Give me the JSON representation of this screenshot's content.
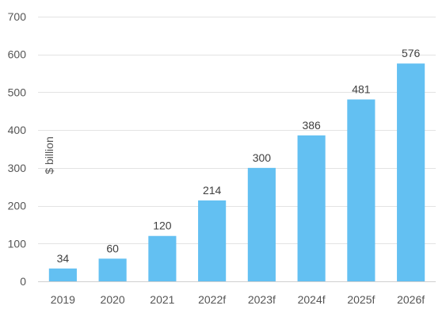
{
  "chart_data": {
    "type": "bar",
    "categories": [
      "2019",
      "2020",
      "2021",
      "2022f",
      "2023f",
      "2024f",
      "2025f",
      "2026f"
    ],
    "values": [
      34,
      60,
      120,
      214,
      300,
      386,
      481,
      576
    ],
    "data_labels": [
      "34",
      "60",
      "120",
      "214",
      "300",
      "386",
      "481",
      "576"
    ],
    "title": "",
    "xlabel": "",
    "ylabel": "$ billion",
    "ylim": [
      0,
      700
    ],
    "yticks": [
      0,
      100,
      200,
      300,
      400,
      500,
      600,
      700
    ],
    "ytick_labels": [
      "0",
      "100",
      "200",
      "300",
      "400",
      "500",
      "600",
      "700"
    ],
    "grid": true,
    "legend": "none",
    "colors": {
      "bar": "#63C0F2",
      "grid": "#e3e3e3",
      "text": "#555555"
    }
  }
}
